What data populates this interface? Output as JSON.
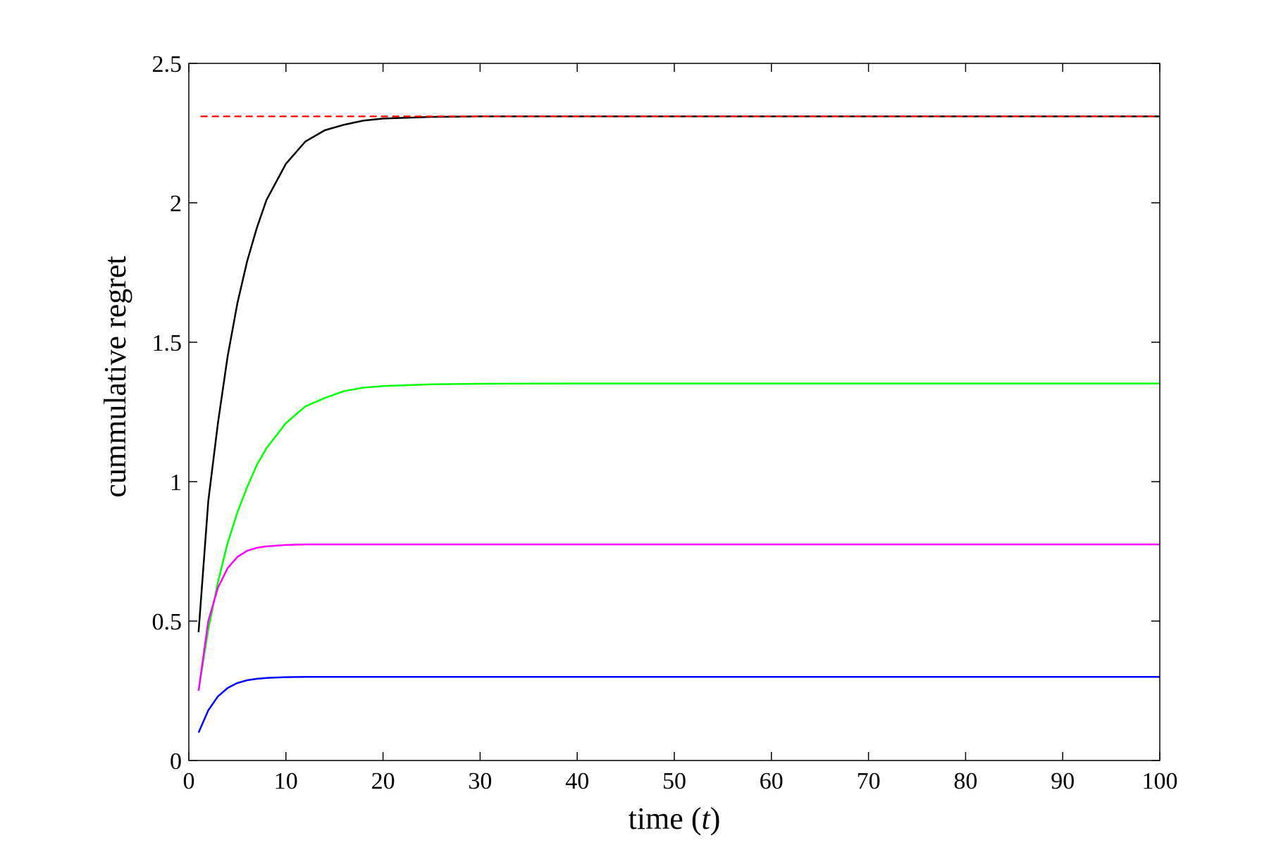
{
  "chart_data": {
    "type": "line",
    "title": "",
    "xlabel": "time (t)",
    "xlabel_parts": {
      "prefix": "time (",
      "variable": "t",
      "suffix": ")"
    },
    "ylabel": "cummulative regret",
    "xlim": [
      0,
      100
    ],
    "ylim": [
      0,
      2.5
    ],
    "x_ticks": [
      0,
      10,
      20,
      30,
      40,
      50,
      60,
      70,
      80,
      90,
      100
    ],
    "x_tick_labels": [
      "0",
      "10",
      "20",
      "30",
      "40",
      "50",
      "60",
      "70",
      "80",
      "90",
      "100"
    ],
    "y_ticks": [
      0,
      0.5,
      1,
      1.5,
      2,
      2.5
    ],
    "y_tick_labels": [
      "0",
      "0.5",
      "1",
      "1.5",
      "2",
      "2.5"
    ],
    "grid": false,
    "legend": "none",
    "reference_line": {
      "y": 2.31,
      "x_start": 1.2,
      "x_end": 100,
      "color": "#ff0000",
      "style": "dashed"
    },
    "series": [
      {
        "color": "#000000",
        "x": [
          1,
          2,
          3,
          4,
          5,
          6,
          7,
          8,
          10,
          12,
          14,
          16,
          18,
          20,
          25,
          30,
          40,
          50,
          60,
          70,
          80,
          90,
          100
        ],
        "y": [
          0.46,
          0.93,
          1.21,
          1.45,
          1.64,
          1.79,
          1.91,
          2.01,
          2.14,
          2.22,
          2.26,
          2.28,
          2.295,
          2.302,
          2.308,
          2.31,
          2.31,
          2.31,
          2.31,
          2.31,
          2.31,
          2.31,
          2.31
        ]
      },
      {
        "color": "#00ff00",
        "x": [
          1,
          2,
          3,
          4,
          5,
          6,
          7,
          8,
          10,
          12,
          14,
          16,
          18,
          20,
          25,
          30,
          40,
          50,
          60,
          70,
          80,
          90,
          100
        ],
        "y": [
          0.25,
          0.47,
          0.64,
          0.78,
          0.89,
          0.98,
          1.06,
          1.12,
          1.21,
          1.27,
          1.3,
          1.325,
          1.337,
          1.343,
          1.349,
          1.351,
          1.352,
          1.352,
          1.352,
          1.352,
          1.352,
          1.352,
          1.352
        ]
      },
      {
        "color": "#ff00ff",
        "x": [
          1,
          2,
          3,
          4,
          5,
          6,
          7,
          8,
          10,
          12,
          14,
          16,
          20,
          30,
          40,
          50,
          60,
          70,
          80,
          90,
          100
        ],
        "y": [
          0.25,
          0.5,
          0.62,
          0.69,
          0.73,
          0.752,
          0.763,
          0.768,
          0.773,
          0.775,
          0.775,
          0.775,
          0.775,
          0.775,
          0.775,
          0.775,
          0.775,
          0.775,
          0.775,
          0.775,
          0.775
        ]
      },
      {
        "color": "#0000ff",
        "x": [
          1,
          2,
          3,
          4,
          5,
          6,
          7,
          8,
          10,
          12,
          14,
          16,
          20,
          30,
          40,
          50,
          60,
          70,
          80,
          90,
          100
        ],
        "y": [
          0.1,
          0.18,
          0.23,
          0.26,
          0.278,
          0.288,
          0.293,
          0.296,
          0.299,
          0.3,
          0.3,
          0.3,
          0.3,
          0.3,
          0.3,
          0.3,
          0.3,
          0.3,
          0.3,
          0.3,
          0.3
        ]
      }
    ]
  }
}
